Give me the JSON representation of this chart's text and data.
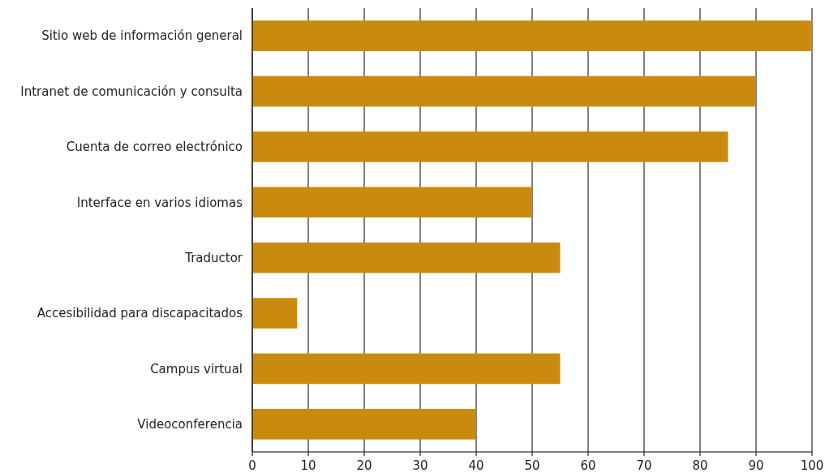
{
  "chart_data": {
    "type": "bar",
    "orientation": "horizontal",
    "categories": [
      "Sitio web de información general",
      "Intranet de comunicación y consulta",
      "Cuenta de correo electrónico",
      "Interface en varios idiomas",
      "Traductor",
      "Accesibilidad para discapacitados",
      "Campus virtual",
      "Videoconferencia"
    ],
    "values": [
      100,
      90,
      85,
      50,
      55,
      8,
      55,
      40
    ],
    "color": "#c98a0e",
    "xlim": [
      0,
      100
    ],
    "xticks": [
      0,
      10,
      20,
      30,
      40,
      50,
      60,
      70,
      80,
      90,
      100
    ],
    "grid": "x"
  }
}
